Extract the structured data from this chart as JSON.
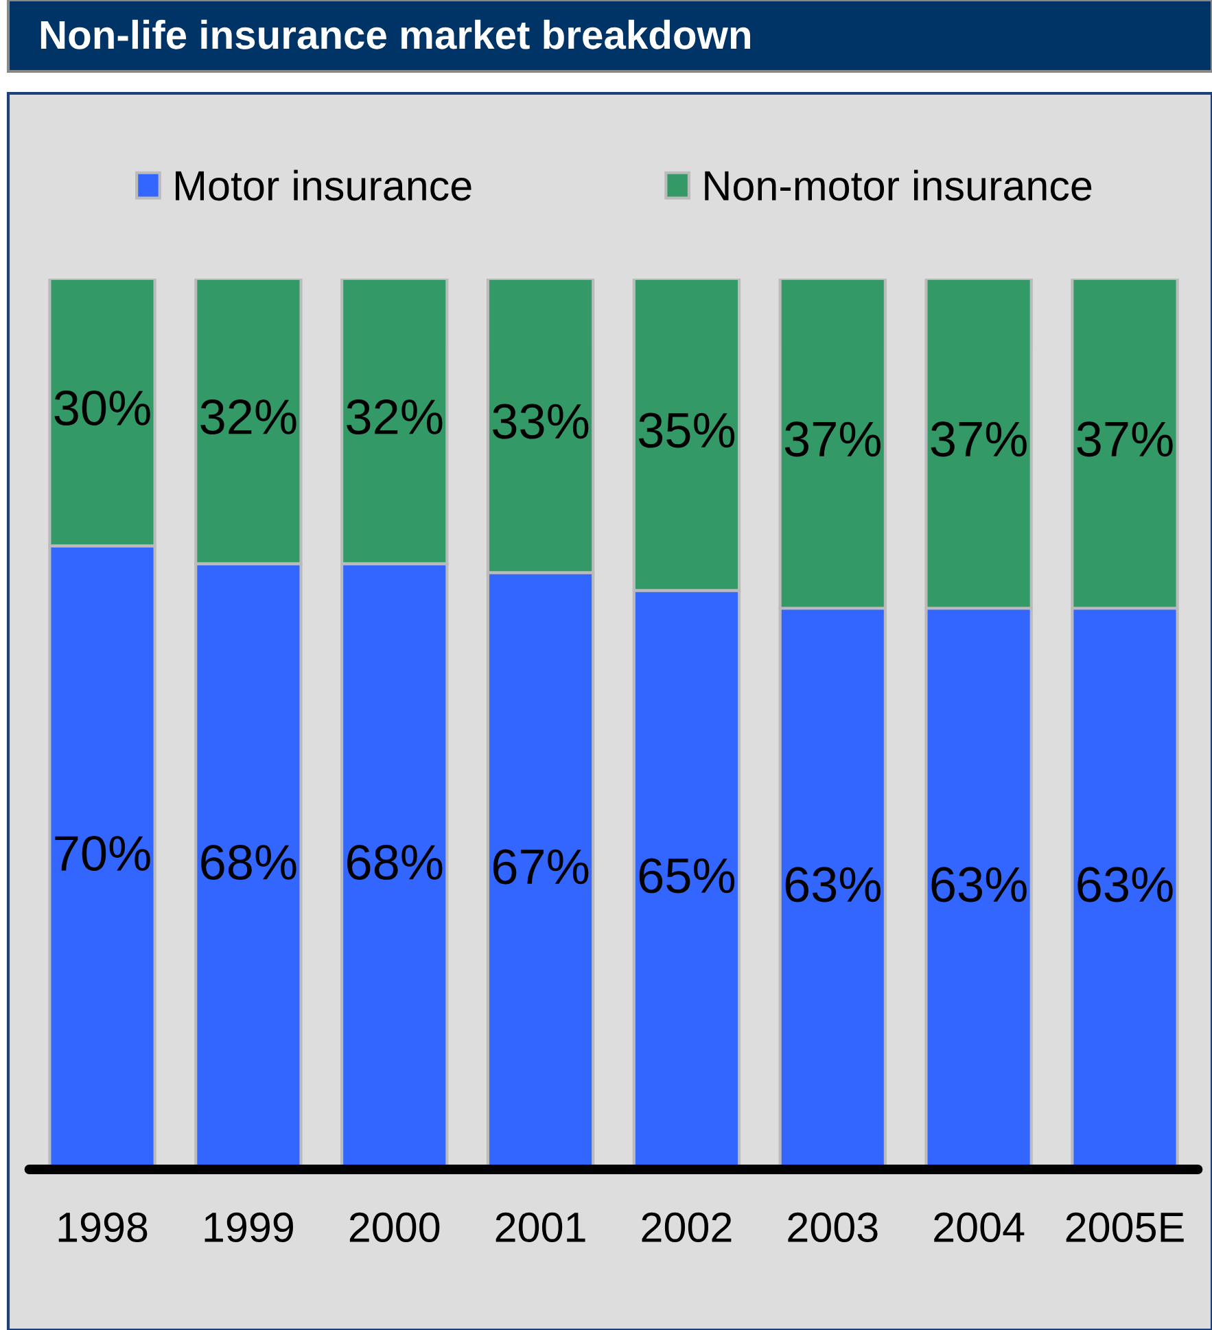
{
  "chart_data": {
    "type": "bar",
    "title": "Non-life insurance market breakdown",
    "categories": [
      "1998",
      "1999",
      "2000",
      "2001",
      "2002",
      "2003",
      "2004",
      "2005E"
    ],
    "stacked": true,
    "legend": "top",
    "tick_labels": "x",
    "series": [
      {
        "name": "Motor insurance",
        "color": "#3366ff",
        "values": [
          70,
          68,
          68,
          67,
          65,
          63,
          63,
          63
        ],
        "value_labels": [
          "70%",
          "68%",
          "68%",
          "67%",
          "65%",
          "63%",
          "63%",
          "63%"
        ]
      },
      {
        "name": "Non-motor insurance",
        "color": "#339966",
        "values": [
          30,
          32,
          32,
          33,
          35,
          37,
          37,
          37
        ],
        "value_labels": [
          "30%",
          "32%",
          "32%",
          "33%",
          "35%",
          "37%",
          "37%",
          "37%"
        ]
      }
    ]
  }
}
